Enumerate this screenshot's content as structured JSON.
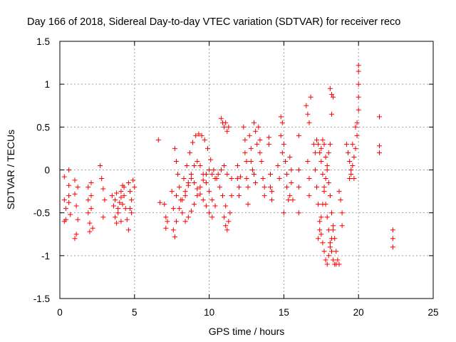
{
  "chart_data": {
    "type": "scatter",
    "title": "Day 166 of 2018, Sidereal Day-to-day VTEC variation (SDTVAR) for receiver reco",
    "xlabel": "GPS time / hours",
    "ylabel": "SDTVAR / TECUs",
    "xlim": [
      0,
      25
    ],
    "ylim": [
      -1.5,
      1.5
    ],
    "xticks": [
      0,
      5,
      10,
      15,
      20,
      25
    ],
    "yticks": [
      -1.5,
      -1,
      -0.5,
      0,
      0.5,
      1,
      1.5
    ],
    "xtick_labels": [
      "0",
      "5",
      "10",
      "15",
      "20",
      "25"
    ],
    "ytick_labels": [
      "-1.5",
      "-1",
      "-0.5",
      "0",
      "0.5",
      "1",
      "1.5"
    ],
    "grid": true,
    "marker": "+",
    "marker_color": "#ff0000",
    "series": [
      {
        "name": "SDTVAR",
        "points": [
          [
            0.3,
            -0.08
          ],
          [
            0.3,
            -0.35
          ],
          [
            0.3,
            -0.6
          ],
          [
            0.4,
            -0.45
          ],
          [
            0.4,
            -0.58
          ],
          [
            0.6,
            0.0
          ],
          [
            0.6,
            -0.18
          ],
          [
            0.6,
            -0.3
          ],
          [
            0.6,
            -0.38
          ],
          [
            0.7,
            -0.52
          ],
          [
            1.0,
            -0.12
          ],
          [
            1.0,
            -0.28
          ],
          [
            1.1,
            -0.42
          ],
          [
            1.1,
            -0.75
          ],
          [
            1.2,
            -0.58
          ],
          [
            1.2,
            -0.2
          ],
          [
            1.0,
            -0.8
          ],
          [
            1.9,
            -0.2
          ],
          [
            1.9,
            -0.35
          ],
          [
            1.9,
            -0.5
          ],
          [
            2.0,
            -0.62
          ],
          [
            2.0,
            -0.72
          ],
          [
            2.1,
            -0.15
          ],
          [
            2.1,
            -0.3
          ],
          [
            2.1,
            -0.45
          ],
          [
            2.2,
            -0.68
          ],
          [
            2.7,
            0.05
          ],
          [
            2.8,
            -0.1
          ],
          [
            2.9,
            -0.22
          ],
          [
            2.9,
            -0.55
          ],
          [
            3.0,
            -0.35
          ],
          [
            3.5,
            -0.3
          ],
          [
            3.6,
            -0.42
          ],
          [
            3.7,
            -0.55
          ],
          [
            3.8,
            -0.62
          ],
          [
            3.9,
            -0.5
          ],
          [
            4.0,
            -0.38
          ],
          [
            4.1,
            -0.25
          ],
          [
            4.2,
            -0.18
          ],
          [
            4.3,
            -0.3
          ],
          [
            4.4,
            -0.45
          ],
          [
            4.5,
            -0.58
          ],
          [
            4.1,
            -0.6
          ],
          [
            3.9,
            -0.45
          ],
          [
            4.2,
            -0.4
          ],
          [
            4.3,
            -0.2
          ],
          [
            4.1,
            -0.32
          ],
          [
            3.7,
            -0.35
          ],
          [
            3.8,
            -0.27
          ],
          [
            4.6,
            -0.15
          ],
          [
            4.7,
            -0.25
          ],
          [
            4.8,
            -0.35
          ],
          [
            4.9,
            -0.12
          ],
          [
            4.7,
            -0.45
          ],
          [
            4.6,
            -0.7
          ],
          [
            4.8,
            -0.5
          ],
          [
            5.0,
            -0.2
          ],
          [
            6.6,
            0.35
          ],
          [
            6.7,
            -0.38
          ],
          [
            7.0,
            -0.4
          ],
          [
            7.1,
            -0.55
          ],
          [
            7.1,
            -0.68
          ],
          [
            7.2,
            -0.6
          ],
          [
            7.5,
            -0.25
          ],
          [
            7.6,
            -0.45
          ],
          [
            7.6,
            -0.7
          ],
          [
            7.7,
            -0.78
          ],
          [
            7.8,
            -0.6
          ],
          [
            7.8,
            -0.3
          ],
          [
            7.7,
            0.25
          ],
          [
            7.8,
            0.1
          ],
          [
            7.9,
            -0.05
          ],
          [
            8.0,
            -0.2
          ],
          [
            8.1,
            -0.35
          ],
          [
            8.2,
            -0.5
          ],
          [
            8.4,
            -0.6
          ],
          [
            8.6,
            -0.55
          ],
          [
            8.8,
            -0.48
          ],
          [
            9.0,
            -0.4
          ],
          [
            9.2,
            -0.3
          ],
          [
            9.4,
            -0.2
          ],
          [
            9.6,
            -0.12
          ],
          [
            9.8,
            -0.05
          ],
          [
            8.3,
            -0.1
          ],
          [
            8.5,
            0.05
          ],
          [
            8.7,
            0.2
          ],
          [
            8.9,
            0.32
          ],
          [
            9.1,
            0.4
          ],
          [
            9.3,
            0.42
          ],
          [
            9.5,
            0.4
          ],
          [
            9.7,
            0.35
          ],
          [
            9.9,
            0.25
          ],
          [
            10.1,
            0.12
          ],
          [
            10.3,
            0.0
          ],
          [
            10.5,
            -0.1
          ],
          [
            10.7,
            -0.2
          ],
          [
            10.9,
            -0.3
          ],
          [
            11.1,
            -0.42
          ],
          [
            8.4,
            -0.3
          ],
          [
            8.6,
            -0.15
          ],
          [
            8.8,
            -0.05
          ],
          [
            9.0,
            0.05
          ],
          [
            9.2,
            0.1
          ],
          [
            9.4,
            0.05
          ],
          [
            9.6,
            -0.05
          ],
          [
            9.8,
            -0.15
          ],
          [
            10.0,
            -0.25
          ],
          [
            10.2,
            -0.35
          ],
          [
            10.4,
            -0.42
          ],
          [
            8.0,
            -0.45
          ],
          [
            8.2,
            -0.35
          ],
          [
            8.4,
            -0.25
          ],
          [
            8.6,
            -0.18
          ],
          [
            8.8,
            -0.1
          ],
          [
            9.0,
            -0.15
          ],
          [
            9.2,
            -0.22
          ],
          [
            9.4,
            -0.28
          ],
          [
            9.6,
            -0.35
          ],
          [
            9.8,
            -0.42
          ],
          [
            10.0,
            -0.5
          ],
          [
            10.2,
            -0.55
          ],
          [
            10.0,
            0.0
          ],
          [
            10.2,
            -0.05
          ],
          [
            10.4,
            -0.1
          ],
          [
            10.6,
            -0.05
          ],
          [
            10.8,
            0.0
          ],
          [
            11.0,
            0.05
          ],
          [
            11.2,
            -0.05
          ],
          [
            10.8,
            0.6
          ],
          [
            10.9,
            0.55
          ],
          [
            11.0,
            0.5
          ],
          [
            11.1,
            0.55
          ],
          [
            11.2,
            0.45
          ],
          [
            11.3,
            0.5
          ],
          [
            11.0,
            -0.55
          ],
          [
            11.1,
            -0.65
          ],
          [
            11.2,
            -0.7
          ],
          [
            11.3,
            -0.6
          ],
          [
            11.4,
            -0.5
          ],
          [
            11.5,
            -0.3
          ],
          [
            11.5,
            -0.1
          ],
          [
            11.9,
            0.05
          ],
          [
            11.9,
            -0.1
          ],
          [
            12.0,
            -0.2
          ],
          [
            12.0,
            -0.3
          ],
          [
            12.1,
            -0.08
          ],
          [
            12.3,
            0.5
          ],
          [
            12.4,
            0.35
          ],
          [
            12.4,
            0.2
          ],
          [
            12.5,
            0.1
          ],
          [
            12.5,
            -0.1
          ],
          [
            12.6,
            -0.2
          ],
          [
            12.6,
            -0.4
          ],
          [
            12.7,
            0.4
          ],
          [
            12.8,
            0.25
          ],
          [
            12.8,
            0.1
          ],
          [
            12.9,
            0.0
          ],
          [
            13.0,
            -0.05
          ],
          [
            13.1,
            -0.15
          ],
          [
            13.0,
            0.55
          ],
          [
            13.1,
            0.45
          ],
          [
            13.2,
            0.3
          ],
          [
            13.3,
            0.5
          ],
          [
            13.4,
            0.2
          ],
          [
            13.5,
            0.1
          ],
          [
            13.4,
            0.35
          ],
          [
            13.6,
            -0.1
          ],
          [
            13.7,
            -0.2
          ],
          [
            13.7,
            -0.3
          ],
          [
            14.0,
            0.38
          ],
          [
            14.0,
            0.3
          ],
          [
            14.1,
            -0.05
          ],
          [
            14.1,
            -0.2
          ],
          [
            14.2,
            -0.35
          ],
          [
            14.2,
            -0.25
          ],
          [
            14.6,
            0.05
          ],
          [
            14.7,
            -0.1
          ],
          [
            14.8,
            0.62
          ],
          [
            14.8,
            0.4
          ],
          [
            14.9,
            0.2
          ],
          [
            15.0,
            0.3
          ],
          [
            15.1,
            0.1
          ],
          [
            15.2,
            -0.05
          ],
          [
            15.2,
            -0.2
          ],
          [
            15.3,
            -0.35
          ],
          [
            15.0,
            -0.5
          ],
          [
            15.4,
            -0.3
          ],
          [
            15.4,
            0.15
          ],
          [
            14.9,
            0.55
          ],
          [
            15.5,
            0.0
          ],
          [
            15.5,
            -0.15
          ],
          [
            15.6,
            -0.35
          ],
          [
            16.0,
            0.4
          ],
          [
            16.0,
            0.0
          ],
          [
            16.0,
            -0.2
          ],
          [
            16.0,
            -0.5
          ],
          [
            16.5,
            0.75
          ],
          [
            16.6,
            0.65
          ],
          [
            16.7,
            0.55
          ],
          [
            16.8,
            0.85
          ],
          [
            16.6,
            0.1
          ],
          [
            16.7,
            -0.1
          ],
          [
            16.7,
            -0.3
          ],
          [
            17.0,
            0.3
          ],
          [
            17.1,
            0.2
          ],
          [
            17.1,
            0.0
          ],
          [
            17.2,
            -0.2
          ],
          [
            17.3,
            -0.4
          ],
          [
            17.4,
            -0.6
          ],
          [
            17.5,
            -0.75
          ],
          [
            17.6,
            -0.85
          ],
          [
            17.7,
            -0.95
          ],
          [
            17.8,
            -1.05
          ],
          [
            17.9,
            -1.1
          ],
          [
            18.0,
            -1.0
          ],
          [
            18.1,
            -0.9
          ],
          [
            18.2,
            -0.8
          ],
          [
            18.3,
            -0.7
          ],
          [
            17.2,
            0.35
          ],
          [
            17.3,
            0.3
          ],
          [
            17.4,
            0.2
          ],
          [
            17.5,
            0.1
          ],
          [
            17.6,
            -0.05
          ],
          [
            17.7,
            -0.2
          ],
          [
            17.8,
            -0.4
          ],
          [
            17.9,
            -0.55
          ],
          [
            18.0,
            -0.7
          ],
          [
            18.1,
            -0.85
          ],
          [
            18.2,
            -0.95
          ],
          [
            18.3,
            -1.05
          ],
          [
            18.4,
            -1.1
          ],
          [
            18.5,
            -1.1
          ],
          [
            17.5,
            0.25
          ],
          [
            17.6,
            0.35
          ],
          [
            17.7,
            0.3
          ],
          [
            17.8,
            0.15
          ],
          [
            17.9,
            0.0
          ],
          [
            18.0,
            -0.15
          ],
          [
            18.1,
            -0.3
          ],
          [
            18.2,
            -0.5
          ],
          [
            18.3,
            -0.65
          ],
          [
            18.4,
            -0.8
          ],
          [
            18.5,
            -0.95
          ],
          [
            18.6,
            -1.05
          ],
          [
            18.7,
            -1.1
          ],
          [
            17.3,
            -0.8
          ],
          [
            17.4,
            -0.7
          ],
          [
            17.5,
            -0.55
          ],
          [
            17.6,
            -0.4
          ],
          [
            17.7,
            -0.25
          ],
          [
            17.8,
            -0.1
          ],
          [
            17.9,
            0.05
          ],
          [
            18.0,
            0.2
          ],
          [
            18.1,
            0.3
          ],
          [
            18.1,
            0.95
          ],
          [
            18.2,
            0.88
          ],
          [
            18.3,
            0.85
          ],
          [
            18.2,
            0.65
          ],
          [
            18.7,
            -0.25
          ],
          [
            18.8,
            -0.35
          ],
          [
            18.9,
            -0.5
          ],
          [
            18.9,
            -0.65
          ],
          [
            19.2,
            0.3
          ],
          [
            19.3,
            0.2
          ],
          [
            19.4,
            0.1
          ],
          [
            19.5,
            0.0
          ],
          [
            19.4,
            -0.1
          ],
          [
            19.5,
            -0.05
          ],
          [
            19.6,
            0.05
          ],
          [
            19.7,
            0.15
          ],
          [
            19.8,
            0.25
          ],
          [
            19.9,
            0.4
          ],
          [
            19.9,
            0.55
          ],
          [
            20.0,
            0.7
          ],
          [
            20.0,
            0.85
          ],
          [
            20.0,
            1.0
          ],
          [
            20.0,
            1.15
          ],
          [
            20.0,
            1.22
          ],
          [
            19.8,
            0.5
          ],
          [
            19.6,
            0.3
          ],
          [
            19.7,
            -0.1
          ],
          [
            21.4,
            0.62
          ],
          [
            21.4,
            0.28
          ],
          [
            21.4,
            0.2
          ],
          [
            22.3,
            -0.7
          ],
          [
            22.3,
            -0.8
          ],
          [
            22.3,
            -0.9
          ]
        ]
      }
    ]
  }
}
